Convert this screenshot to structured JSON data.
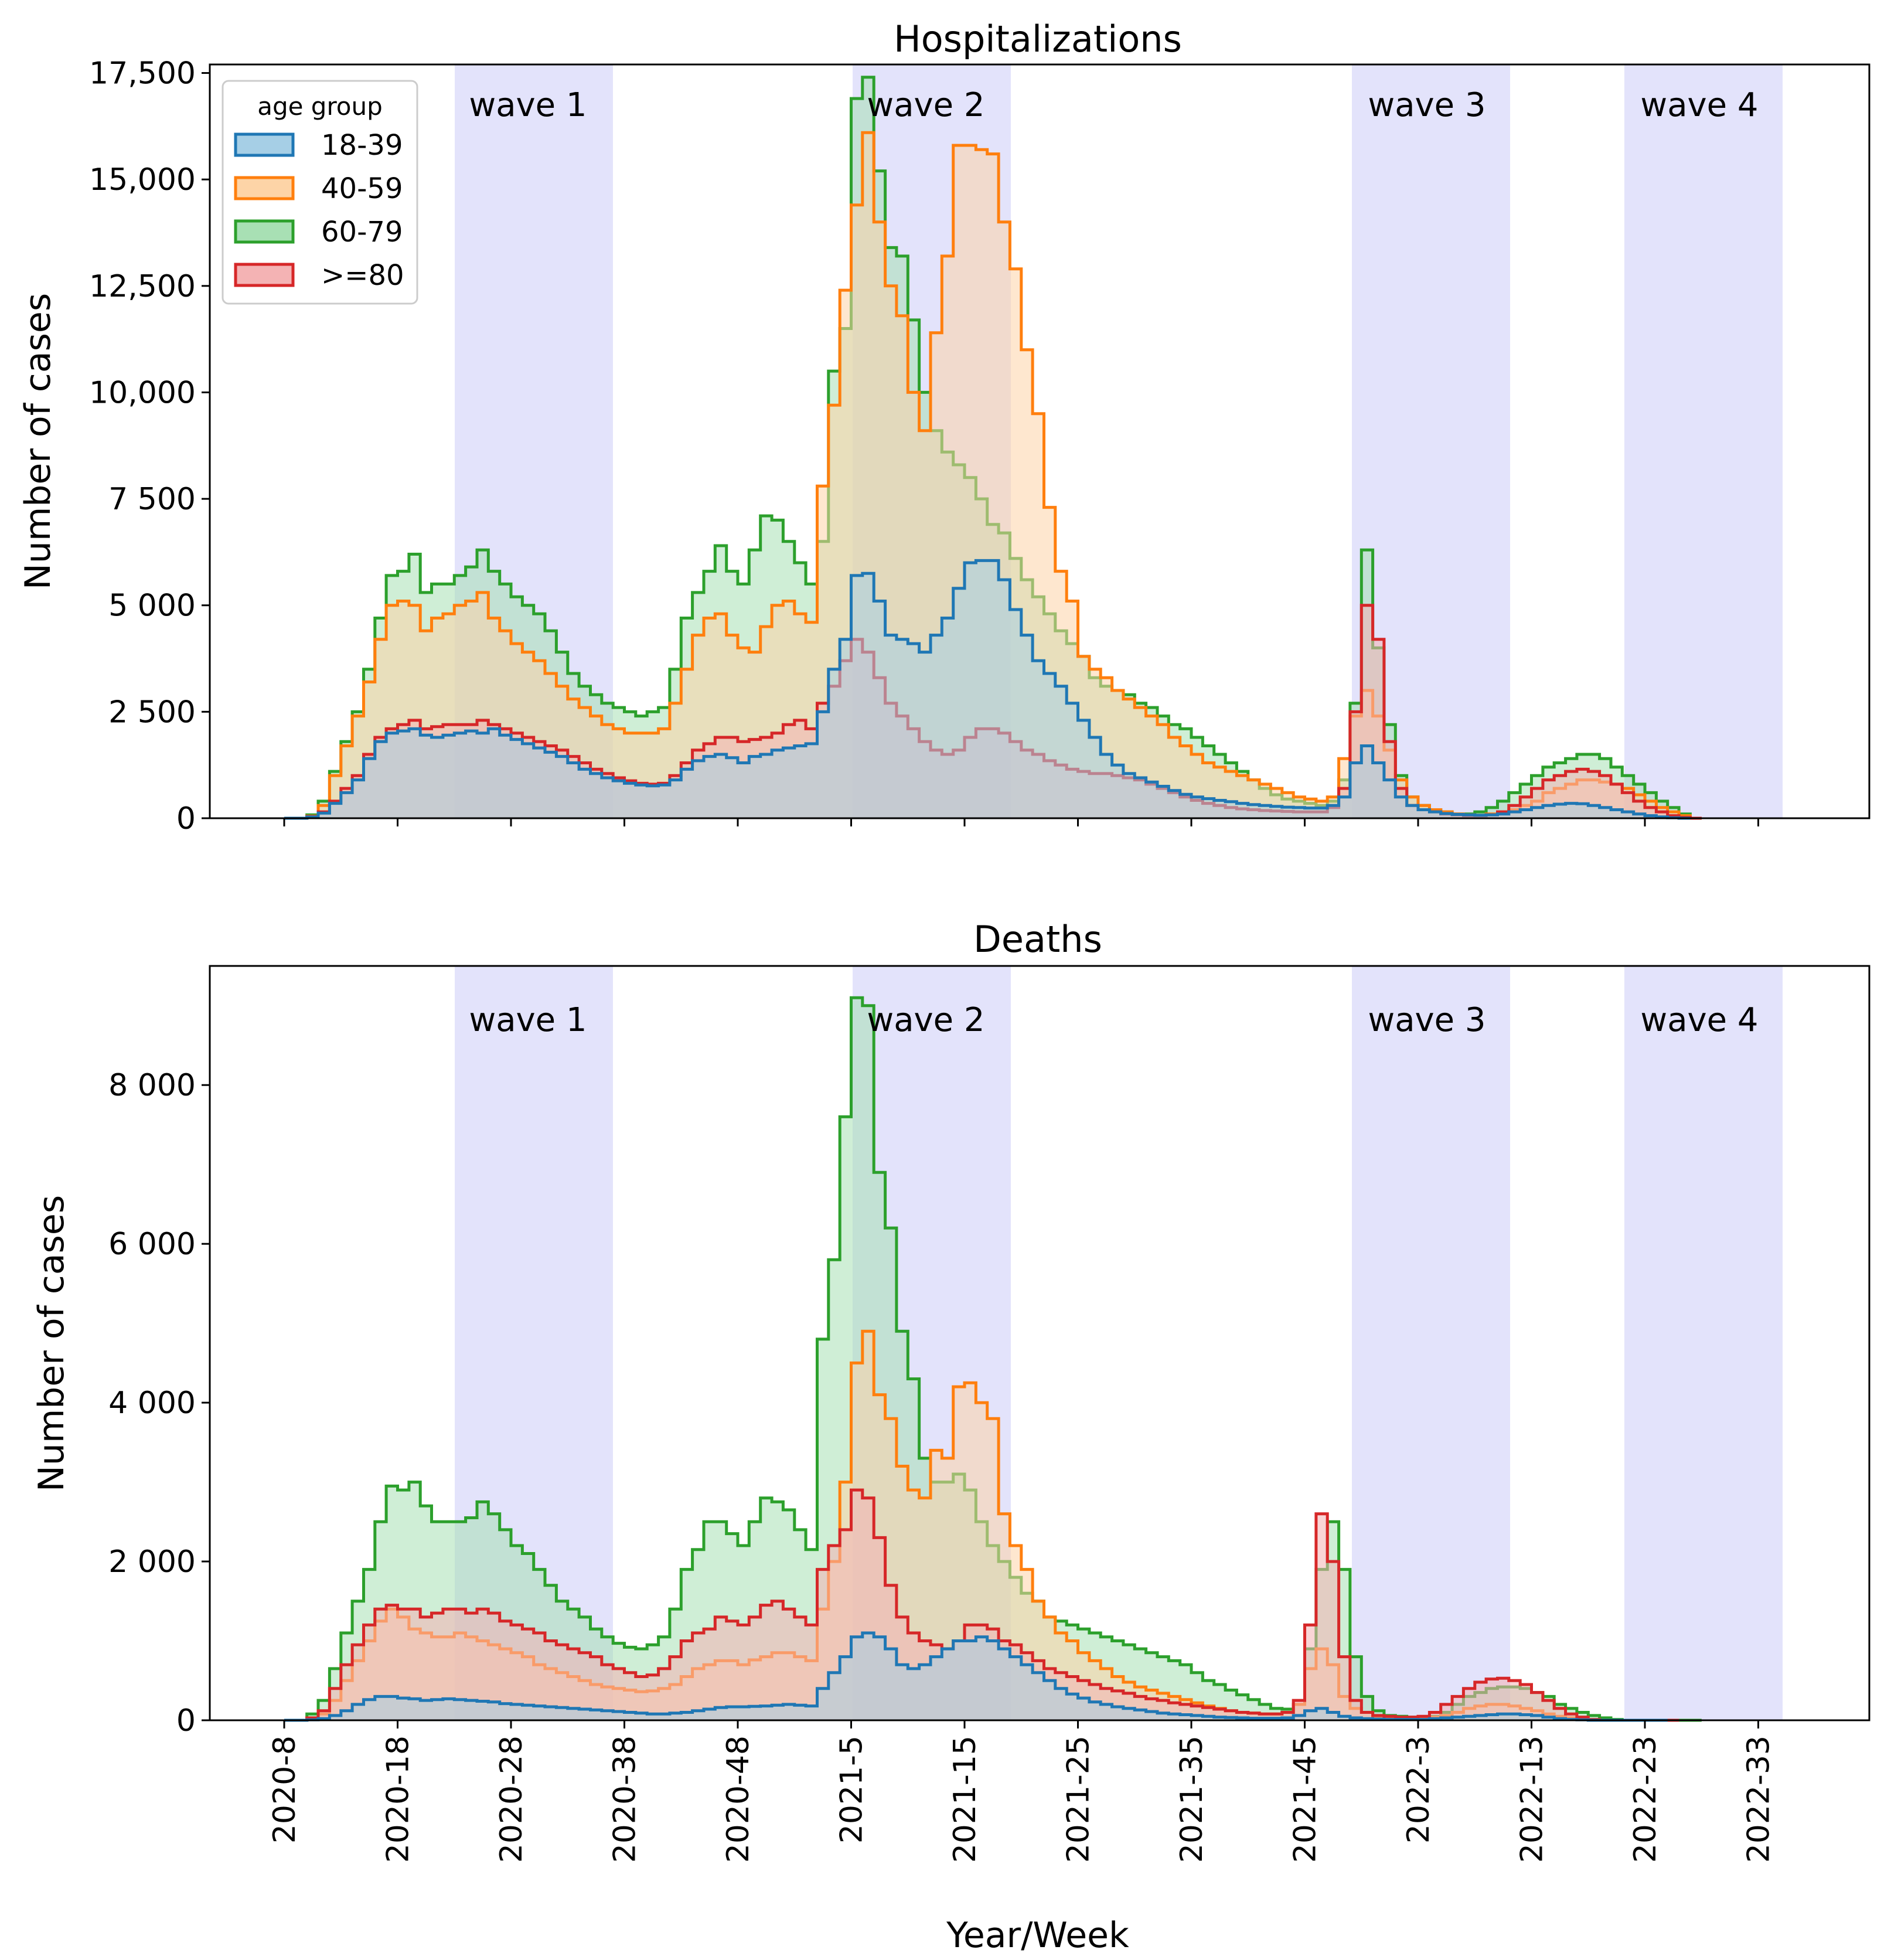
{
  "chart_data": [
    {
      "type": "area",
      "title": "Hospitalizations",
      "xlabel": "",
      "ylabel": "Number of cases",
      "ylim": [
        0,
        17700
      ],
      "yticks": [
        0,
        2500,
        5000,
        7500,
        10000,
        12500,
        15000,
        17500
      ],
      "ytick_labels": [
        "0",
        "2 500",
        "5 000",
        "7 500",
        "10,000",
        "12,500",
        "15,000",
        "17,500"
      ],
      "waves": [
        "wave 1",
        "wave 2",
        "wave 3",
        "wave 4"
      ],
      "legend": {
        "title": "age group",
        "placement": "top-left",
        "entries": [
          "18-39",
          "40-59",
          "60-79",
          ">=80"
        ]
      },
      "x_start_index": 0,
      "series": [
        {
          "name": "18-39",
          "color": "#1f77b4",
          "fill": "#a6cfe6",
          "values": [
            0,
            0,
            30,
            120,
            350,
            600,
            900,
            1400,
            1800,
            2000,
            2050,
            2100,
            1950,
            1900,
            1950,
            2000,
            2050,
            2000,
            2100,
            1950,
            1850,
            1750,
            1650,
            1550,
            1450,
            1300,
            1150,
            1050,
            950,
            880,
            820,
            780,
            760,
            780,
            900,
            1150,
            1350,
            1450,
            1500,
            1420,
            1300,
            1450,
            1500,
            1600,
            1650,
            1700,
            1750,
            2500,
            3500,
            4200,
            5700,
            5750,
            5100,
            4300,
            4200,
            4100,
            3900,
            4300,
            4700,
            5400,
            6000,
            6050,
            6050,
            5600,
            4900,
            4300,
            3700,
            3400,
            3100,
            2700,
            2300,
            1900,
            1500,
            1250,
            1050,
            950,
            850,
            750,
            650,
            560,
            500,
            460,
            420,
            390,
            350,
            320,
            300,
            280,
            260,
            250,
            240,
            240,
            300,
            500,
            1300,
            1700,
            1300,
            900,
            500,
            300,
            200,
            150,
            110,
            90,
            80,
            70,
            80,
            100,
            150,
            200,
            250,
            300,
            330,
            350,
            340,
            300,
            250,
            200,
            150,
            100,
            60,
            30,
            10,
            0
          ]
        },
        {
          "name": "40-59",
          "color": "#ff7f0e",
          "fill": "#fdd4a7",
          "values": [
            0,
            0,
            50,
            300,
            1000,
            1700,
            2400,
            3200,
            4200,
            5000,
            5100,
            5000,
            4400,
            4700,
            4800,
            5000,
            5100,
            5300,
            4700,
            4400,
            4100,
            3900,
            3700,
            3400,
            3100,
            2800,
            2600,
            2400,
            2200,
            2100,
            2000,
            2000,
            2000,
            2100,
            2700,
            3500,
            4300,
            4700,
            4800,
            4300,
            4000,
            3900,
            4500,
            5000,
            5100,
            4800,
            4600,
            7800,
            9700,
            12400,
            14400,
            16100,
            14000,
            12500,
            11800,
            10000,
            9100,
            11400,
            13200,
            15800,
            15800,
            15700,
            15600,
            14000,
            12900,
            11000,
            9500,
            7300,
            5800,
            5100,
            3800,
            3500,
            3300,
            3000,
            2800,
            2600,
            2400,
            2200,
            1900,
            1700,
            1500,
            1300,
            1200,
            1100,
            1000,
            900,
            800,
            700,
            600,
            500,
            450,
            400,
            500,
            1400,
            2400,
            3000,
            2400,
            1600,
            900,
            500,
            300,
            200,
            150,
            100,
            80,
            70,
            100,
            150,
            200,
            300,
            400,
            600,
            700,
            800,
            900,
            900,
            850,
            800,
            700,
            550,
            400,
            250,
            150,
            60,
            0
          ]
        },
        {
          "name": "60-79",
          "color": "#2ca02c",
          "fill": "#a8e0b4",
          "values": [
            0,
            0,
            80,
            400,
            1100,
            1800,
            2500,
            3500,
            4700,
            5700,
            5800,
            6200,
            5300,
            5500,
            5500,
            5700,
            5900,
            6300,
            5800,
            5500,
            5200,
            5000,
            4800,
            4400,
            3900,
            3400,
            3100,
            2900,
            2700,
            2600,
            2500,
            2400,
            2500,
            2600,
            3500,
            4700,
            5300,
            5800,
            6400,
            5800,
            5500,
            6300,
            7100,
            7000,
            6500,
            6000,
            5500,
            6500,
            10500,
            11500,
            16900,
            17400,
            15200,
            13400,
            13200,
            11700,
            10000,
            9100,
            8600,
            8300,
            8000,
            7500,
            6900,
            6700,
            6100,
            5600,
            5200,
            4800,
            4400,
            4100,
            3800,
            3300,
            3100,
            3000,
            2900,
            2700,
            2600,
            2400,
            2200,
            2100,
            1900,
            1700,
            1500,
            1300,
            1100,
            900,
            700,
            550,
            450,
            400,
            350,
            300,
            400,
            900,
            2700,
            6300,
            4000,
            2200,
            1000,
            500,
            300,
            200,
            150,
            100,
            100,
            150,
            250,
            400,
            600,
            800,
            1000,
            1200,
            1300,
            1400,
            1500,
            1500,
            1400,
            1200,
            1000,
            800,
            600,
            400,
            250,
            100,
            0
          ]
        },
        {
          "name": ">=80",
          "color": "#d62728",
          "fill": "#f4b3b4",
          "values": [
            0,
            0,
            40,
            150,
            400,
            700,
            1000,
            1500,
            1900,
            2100,
            2200,
            2300,
            2100,
            2150,
            2200,
            2200,
            2200,
            2300,
            2200,
            2100,
            2000,
            1900,
            1800,
            1700,
            1600,
            1450,
            1300,
            1150,
            1050,
            950,
            880,
            820,
            800,
            820,
            1000,
            1300,
            1600,
            1750,
            1900,
            1900,
            1800,
            1850,
            1900,
            2000,
            2200,
            2300,
            2100,
            2700,
            3100,
            3700,
            4200,
            3900,
            3300,
            2700,
            2400,
            2100,
            1800,
            1600,
            1500,
            1600,
            1900,
            2100,
            2100,
            2000,
            1800,
            1600,
            1500,
            1350,
            1250,
            1150,
            1100,
            1050,
            1050,
            1000,
            950,
            900,
            800,
            700,
            600,
            500,
            420,
            350,
            300,
            250,
            220,
            200,
            180,
            170,
            160,
            150,
            150,
            150,
            250,
            700,
            2500,
            5000,
            4200,
            1800,
            700,
            300,
            200,
            150,
            100,
            80,
            60,
            60,
            80,
            150,
            300,
            500,
            700,
            900,
            1000,
            1100,
            1150,
            1100,
            1000,
            800,
            600,
            400,
            250,
            150,
            60,
            20,
            0
          ]
        }
      ]
    },
    {
      "type": "area",
      "title": "Deaths",
      "xlabel": "Year/Week",
      "ylabel": "Number of cases",
      "ylim": [
        0,
        9500
      ],
      "yticks": [
        0,
        2000,
        4000,
        6000,
        8000
      ],
      "ytick_labels": [
        "0",
        "2 000",
        "4 000",
        "6 000",
        "8 000"
      ],
      "waves": [
        "wave 1",
        "wave 2",
        "wave 3",
        "wave 4"
      ],
      "x_tick_labels": [
        "2020-8",
        "2020-18",
        "2020-28",
        "2020-38",
        "2020-48",
        "2021-5",
        "2021-15",
        "2021-25",
        "2021-35",
        "2021-45",
        "2022-3",
        "2022-13",
        "2022-23",
        "2022-33"
      ],
      "x_start_index": 0,
      "series": [
        {
          "name": "18-39",
          "color": "#1f77b4",
          "fill": "#a6cfe6",
          "values": [
            0,
            0,
            5,
            20,
            60,
            120,
            200,
            260,
            300,
            300,
            280,
            270,
            250,
            260,
            270,
            260,
            250,
            240,
            230,
            210,
            200,
            190,
            180,
            170,
            160,
            150,
            140,
            130,
            120,
            110,
            100,
            90,
            80,
            80,
            90,
            100,
            120,
            140,
            160,
            170,
            170,
            175,
            180,
            190,
            200,
            190,
            180,
            400,
            600,
            800,
            1050,
            1100,
            1050,
            900,
            700,
            650,
            700,
            800,
            900,
            1000,
            1000,
            1050,
            1000,
            900,
            800,
            700,
            600,
            500,
            400,
            330,
            280,
            230,
            200,
            170,
            150,
            130,
            110,
            90,
            80,
            70,
            60,
            50,
            40,
            35,
            30,
            25,
            25,
            25,
            30,
            60,
            120,
            150,
            100,
            50,
            30,
            20,
            15,
            10,
            10,
            10,
            10,
            20,
            30,
            40,
            50,
            60,
            70,
            80,
            80,
            70,
            60,
            40,
            20,
            10,
            5,
            0,
            0,
            0,
            0,
            0,
            0,
            0
          ]
        },
        {
          "name": "40-59",
          "color": "#ff7f0e",
          "fill": "#fdd4a7",
          "values": [
            0,
            0,
            20,
            80,
            250,
            500,
            750,
            1000,
            1250,
            1400,
            1300,
            1150,
            1100,
            1050,
            1050,
            1100,
            1050,
            1000,
            950,
            900,
            850,
            800,
            700,
            650,
            600,
            550,
            500,
            450,
            420,
            400,
            380,
            360,
            370,
            400,
            450,
            550,
            650,
            700,
            750,
            750,
            700,
            760,
            800,
            850,
            850,
            800,
            750,
            1400,
            2000,
            3000,
            4500,
            4900,
            4100,
            3800,
            3200,
            2900,
            2800,
            3400,
            3300,
            4200,
            4250,
            4000,
            3800,
            2600,
            2200,
            1900,
            1500,
            1300,
            1100,
            1000,
            850,
            750,
            650,
            550,
            480,
            420,
            380,
            340,
            300,
            260,
            220,
            180,
            150,
            120,
            100,
            90,
            80,
            80,
            100,
            200,
            650,
            900,
            700,
            300,
            150,
            100,
            50,
            40,
            30,
            30,
            30,
            40,
            60,
            100,
            150,
            180,
            200,
            200,
            180,
            150,
            120,
            80,
            50,
            30,
            15,
            5,
            0,
            0,
            0,
            0,
            0,
            0,
            0
          ]
        },
        {
          "name": "60-79",
          "color": "#2ca02c",
          "fill": "#a8e0b4",
          "values": [
            0,
            0,
            80,
            250,
            650,
            1100,
            1500,
            1900,
            2500,
            2950,
            2900,
            3000,
            2700,
            2500,
            2500,
            2500,
            2550,
            2750,
            2600,
            2400,
            2200,
            2100,
            1900,
            1700,
            1500,
            1400,
            1300,
            1150,
            1050,
            970,
            920,
            900,
            950,
            1050,
            1400,
            1900,
            2150,
            2500,
            2500,
            2350,
            2200,
            2500,
            2800,
            2750,
            2650,
            2400,
            2150,
            4800,
            5800,
            7600,
            9100,
            9000,
            6900,
            6200,
            4900,
            4300,
            3300,
            3000,
            3000,
            3100,
            2900,
            2500,
            2200,
            2000,
            1800,
            1600,
            1500,
            1300,
            1250,
            1200,
            1150,
            1100,
            1050,
            1000,
            950,
            900,
            850,
            800,
            750,
            700,
            600,
            500,
            450,
            380,
            320,
            260,
            200,
            150,
            140,
            200,
            900,
            1900,
            2500,
            1900,
            800,
            300,
            120,
            60,
            50,
            40,
            30,
            50,
            100,
            200,
            300,
            350,
            400,
            420,
            420,
            400,
            350,
            300,
            200,
            150,
            100,
            60,
            30,
            10,
            0,
            0,
            0,
            0,
            0,
            0,
            0
          ]
        },
        {
          "name": ">=80",
          "color": "#d62728",
          "fill": "#f4b3b4",
          "values": [
            0,
            0,
            30,
            120,
            400,
            700,
            950,
            1200,
            1400,
            1450,
            1400,
            1400,
            1300,
            1350,
            1400,
            1400,
            1350,
            1400,
            1350,
            1250,
            1200,
            1150,
            1100,
            1000,
            950,
            900,
            850,
            800,
            700,
            650,
            600,
            550,
            570,
            650,
            800,
            1000,
            1100,
            1150,
            1300,
            1250,
            1200,
            1300,
            1450,
            1500,
            1400,
            1300,
            1200,
            1900,
            2200,
            2400,
            2900,
            2800,
            2300,
            1700,
            1300,
            1100,
            1000,
            950,
            900,
            1000,
            1200,
            1200,
            1150,
            1000,
            950,
            850,
            750,
            650,
            600,
            550,
            500,
            450,
            400,
            370,
            340,
            300,
            270,
            250,
            220,
            200,
            180,
            160,
            140,
            120,
            100,
            90,
            80,
            80,
            100,
            250,
            1200,
            2600,
            2000,
            800,
            250,
            100,
            60,
            50,
            40,
            40,
            50,
            100,
            200,
            300,
            400,
            480,
            520,
            530,
            500,
            450,
            350,
            250,
            150,
            80,
            40,
            10,
            0,
            0,
            0,
            0,
            0,
            0,
            0
          ]
        }
      ]
    }
  ]
}
